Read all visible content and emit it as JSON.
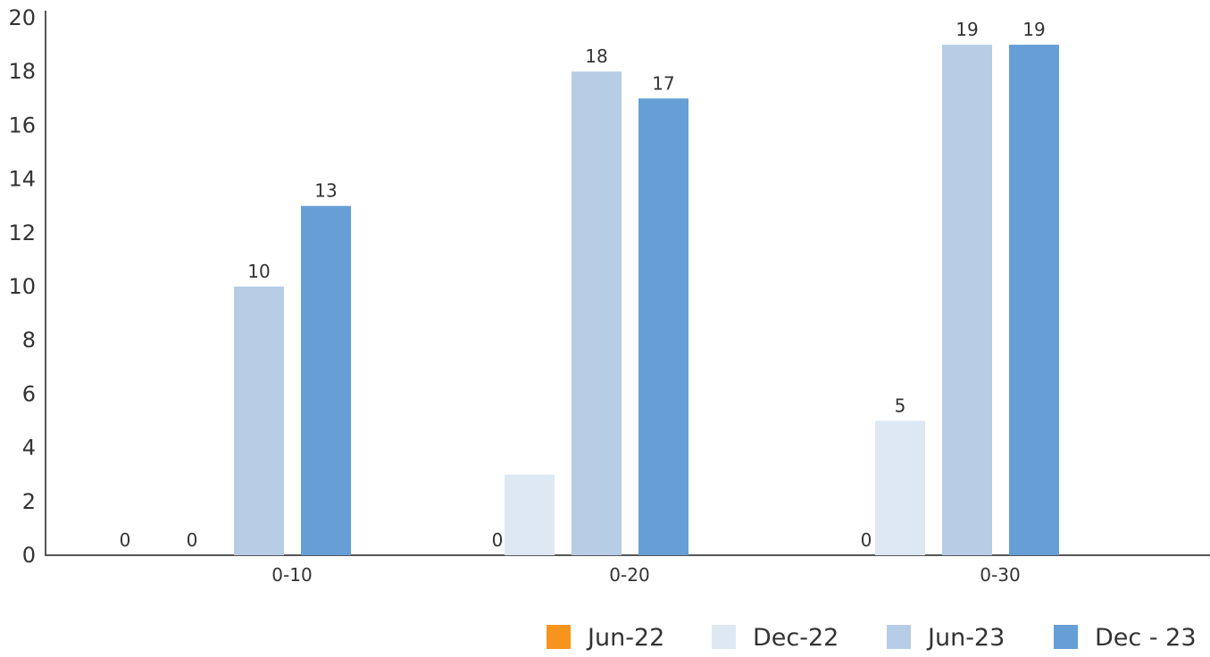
{
  "chart_data": {
    "type": "bar",
    "categories": [
      "0-10",
      "0-20",
      "0-30"
    ],
    "series": [
      {
        "name": "Jun-22",
        "color": "#F7941D",
        "values": [
          0,
          null,
          null
        ],
        "labels": [
          "0",
          "",
          ""
        ]
      },
      {
        "name": "Dec-22",
        "color": "#DDE8F3",
        "values": [
          0,
          3,
          5
        ],
        "labels": [
          "0",
          "",
          "5"
        ]
      },
      {
        "name": "Jun-23",
        "color": "#B7CCE5",
        "values": [
          10,
          18,
          19
        ],
        "labels": [
          "10",
          "18",
          "19"
        ]
      },
      {
        "name": "Dec - 23",
        "color": "#659FD5",
        "values": [
          13,
          17,
          19
        ],
        "labels": [
          "13",
          "17",
          "19"
        ]
      }
    ],
    "extra_labels": [
      "0",
      "0"
    ],
    "ylim": [
      0,
      20
    ],
    "yticks": [
      0,
      2,
      4,
      6,
      8,
      10,
      12,
      14,
      16,
      18,
      20
    ],
    "title": "",
    "xlabel": "",
    "ylabel": "",
    "grid": false,
    "legend_position": "bottom-right"
  }
}
